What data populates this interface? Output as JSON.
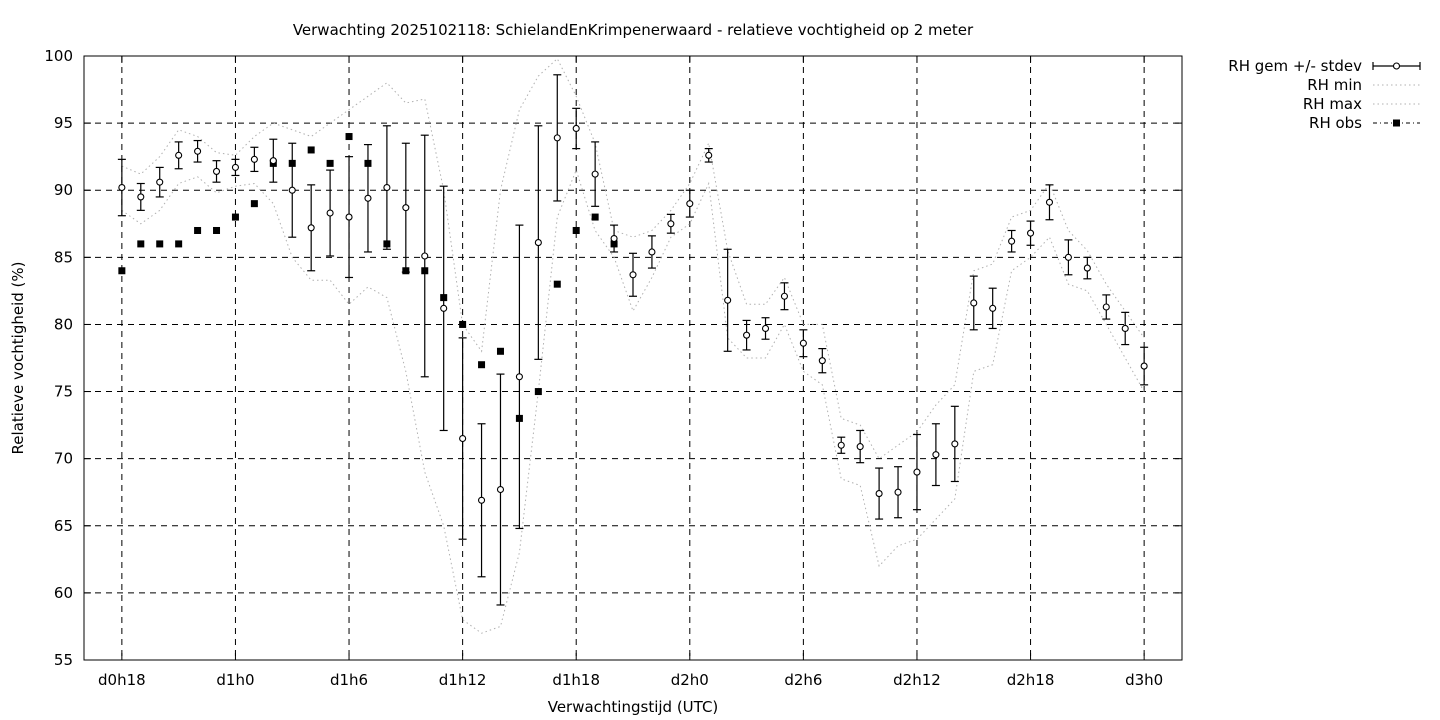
{
  "chart_data": {
    "type": "scatter",
    "title": "Verwachting 2025102118: SchielandEnKrimpenerwaard - relatieve vochtigheid op 2 meter",
    "xlabel": "Verwachtingstijd (UTC)",
    "ylabel": "Relatieve vochtigheid (%)",
    "x_unit": "hours",
    "xlim": [
      16,
      74
    ],
    "ylim": [
      55,
      100
    ],
    "x_ticks": [
      {
        "value": 18,
        "label": "d0h18"
      },
      {
        "value": 24,
        "label": "d1h0"
      },
      {
        "value": 30,
        "label": "d1h6"
      },
      {
        "value": 36,
        "label": "d1h12"
      },
      {
        "value": 42,
        "label": "d1h18"
      },
      {
        "value": 48,
        "label": "d2h0"
      },
      {
        "value": 54,
        "label": "d2h6"
      },
      {
        "value": 60,
        "label": "d2h12"
      },
      {
        "value": 66,
        "label": "d2h18"
      },
      {
        "value": 72,
        "label": "d3h0"
      }
    ],
    "y_ticks": [
      55,
      60,
      65,
      70,
      75,
      80,
      85,
      90,
      95,
      100
    ],
    "grid": true,
    "legend_position": "outside-top-right",
    "series": [
      {
        "name": "RH gem +/- stdev",
        "style": "mean-with-errorbars",
        "x": [
          18,
          19,
          20,
          21,
          22,
          23,
          24,
          25,
          26,
          27,
          28,
          29,
          30,
          31,
          32,
          33,
          34,
          35,
          36,
          37,
          38,
          39,
          40,
          41,
          42,
          43,
          44,
          45,
          46,
          47,
          48,
          49,
          50,
          51,
          52,
          53,
          54,
          55,
          56,
          57,
          58,
          59,
          60,
          61,
          62,
          63,
          64,
          65,
          66,
          67,
          68,
          69,
          70,
          71,
          72
        ],
        "y": [
          90.2,
          89.5,
          90.6,
          92.6,
          92.9,
          91.4,
          91.7,
          92.3,
          92.2,
          90.0,
          87.2,
          88.3,
          88.0,
          89.4,
          90.2,
          88.7,
          85.1,
          81.2,
          71.5,
          66.9,
          67.7,
          76.1,
          86.1,
          93.9,
          94.6,
          91.2,
          86.4,
          83.7,
          85.4,
          87.5,
          89.0,
          92.6,
          81.8,
          79.2,
          79.7,
          82.1,
          78.6,
          77.3,
          71.0,
          70.9,
          67.4,
          67.5,
          69.0,
          70.3,
          71.1,
          81.6,
          81.2,
          86.2,
          86.8,
          89.1,
          85.0,
          84.2,
          81.3,
          79.7,
          76.9
        ],
        "stdev": [
          2.1,
          1.0,
          1.1,
          1.0,
          0.8,
          0.8,
          0.6,
          0.9,
          1.6,
          3.5,
          3.2,
          3.2,
          4.5,
          4.0,
          4.6,
          4.8,
          9.0,
          9.1,
          7.5,
          5.7,
          8.6,
          11.3,
          8.7,
          4.7,
          1.5,
          2.4,
          1.0,
          1.6,
          1.2,
          0.7,
          1.0,
          0.5,
          3.8,
          1.1,
          0.8,
          1.0,
          1.0,
          0.9,
          0.6,
          1.2,
          1.9,
          1.9,
          2.8,
          2.3,
          2.8,
          2.0,
          1.5,
          0.8,
          0.9,
          1.3,
          1.3,
          0.8,
          0.9,
          1.2,
          1.4
        ]
      },
      {
        "name": "RH min",
        "style": "dotted-line",
        "x": [
          18,
          19,
          20,
          21,
          22,
          23,
          24,
          25,
          26,
          27,
          28,
          29,
          30,
          31,
          32,
          33,
          34,
          35,
          36,
          37,
          38,
          39,
          40,
          41,
          42,
          43,
          44,
          45,
          46,
          47,
          48,
          49,
          50,
          51,
          52,
          53,
          54,
          55,
          56,
          57,
          58,
          59,
          60,
          61,
          62,
          63,
          64,
          65,
          66,
          67,
          68,
          69,
          70,
          71,
          72
        ],
        "y": [
          88.5,
          87.5,
          88.5,
          90.5,
          91.0,
          89.8,
          90.3,
          90.5,
          89.0,
          85.0,
          83.3,
          83.3,
          81.5,
          82.8,
          82.0,
          76.5,
          69.0,
          65.0,
          58.0,
          57.0,
          57.5,
          63.0,
          75.0,
          88.0,
          91.5,
          87.0,
          85.0,
          81.0,
          83.5,
          86.5,
          87.5,
          90.5,
          79.0,
          77.5,
          77.5,
          80.0,
          76.5,
          75.5,
          68.5,
          68.0,
          62.0,
          63.5,
          64.0,
          65.5,
          67.0,
          76.5,
          77.0,
          84.0,
          85.0,
          86.5,
          83.0,
          82.5,
          80.0,
          77.5,
          75.0
        ]
      },
      {
        "name": "RH max",
        "style": "dotted-line",
        "x": [
          18,
          19,
          20,
          21,
          22,
          23,
          24,
          25,
          26,
          27,
          28,
          29,
          30,
          31,
          32,
          33,
          34,
          35,
          36,
          37,
          38,
          39,
          40,
          41,
          42,
          43,
          44,
          45,
          46,
          47,
          48,
          49,
          50,
          51,
          52,
          53,
          54,
          55,
          56,
          57,
          58,
          59,
          60,
          61,
          62,
          63,
          64,
          65,
          66,
          67,
          68,
          69,
          70,
          71,
          72
        ],
        "y": [
          91.8,
          91.2,
          92.5,
          94.5,
          94.0,
          92.8,
          92.6,
          94.0,
          95.0,
          94.5,
          94.0,
          95.0,
          96.0,
          97.0,
          98.0,
          96.5,
          96.8,
          90.0,
          80.0,
          78.0,
          90.0,
          96.0,
          98.5,
          99.8,
          97.0,
          93.5,
          87.0,
          86.5,
          87.0,
          88.5,
          90.5,
          93.5,
          85.5,
          81.5,
          81.5,
          83.5,
          80.0,
          80.0,
          73.0,
          72.5,
          70.0,
          71.0,
          72.0,
          74.0,
          75.5,
          84.0,
          84.5,
          88.0,
          88.5,
          90.5,
          87.0,
          85.5,
          83.0,
          81.0,
          79.0
        ]
      },
      {
        "name": "RH obs",
        "style": "filled-square",
        "x": [
          18,
          19,
          20,
          21,
          22,
          23,
          24,
          25,
          26,
          27,
          28,
          29,
          30,
          31,
          32,
          33,
          34,
          35,
          36,
          37,
          38,
          39,
          40,
          41,
          42,
          43,
          44
        ],
        "y": [
          84,
          86,
          86,
          86,
          87,
          87,
          88,
          89,
          92,
          92,
          93,
          92,
          94,
          92,
          86,
          84,
          84,
          82,
          80,
          77,
          78,
          73,
          75,
          83,
          87,
          88,
          86
        ]
      }
    ]
  }
}
